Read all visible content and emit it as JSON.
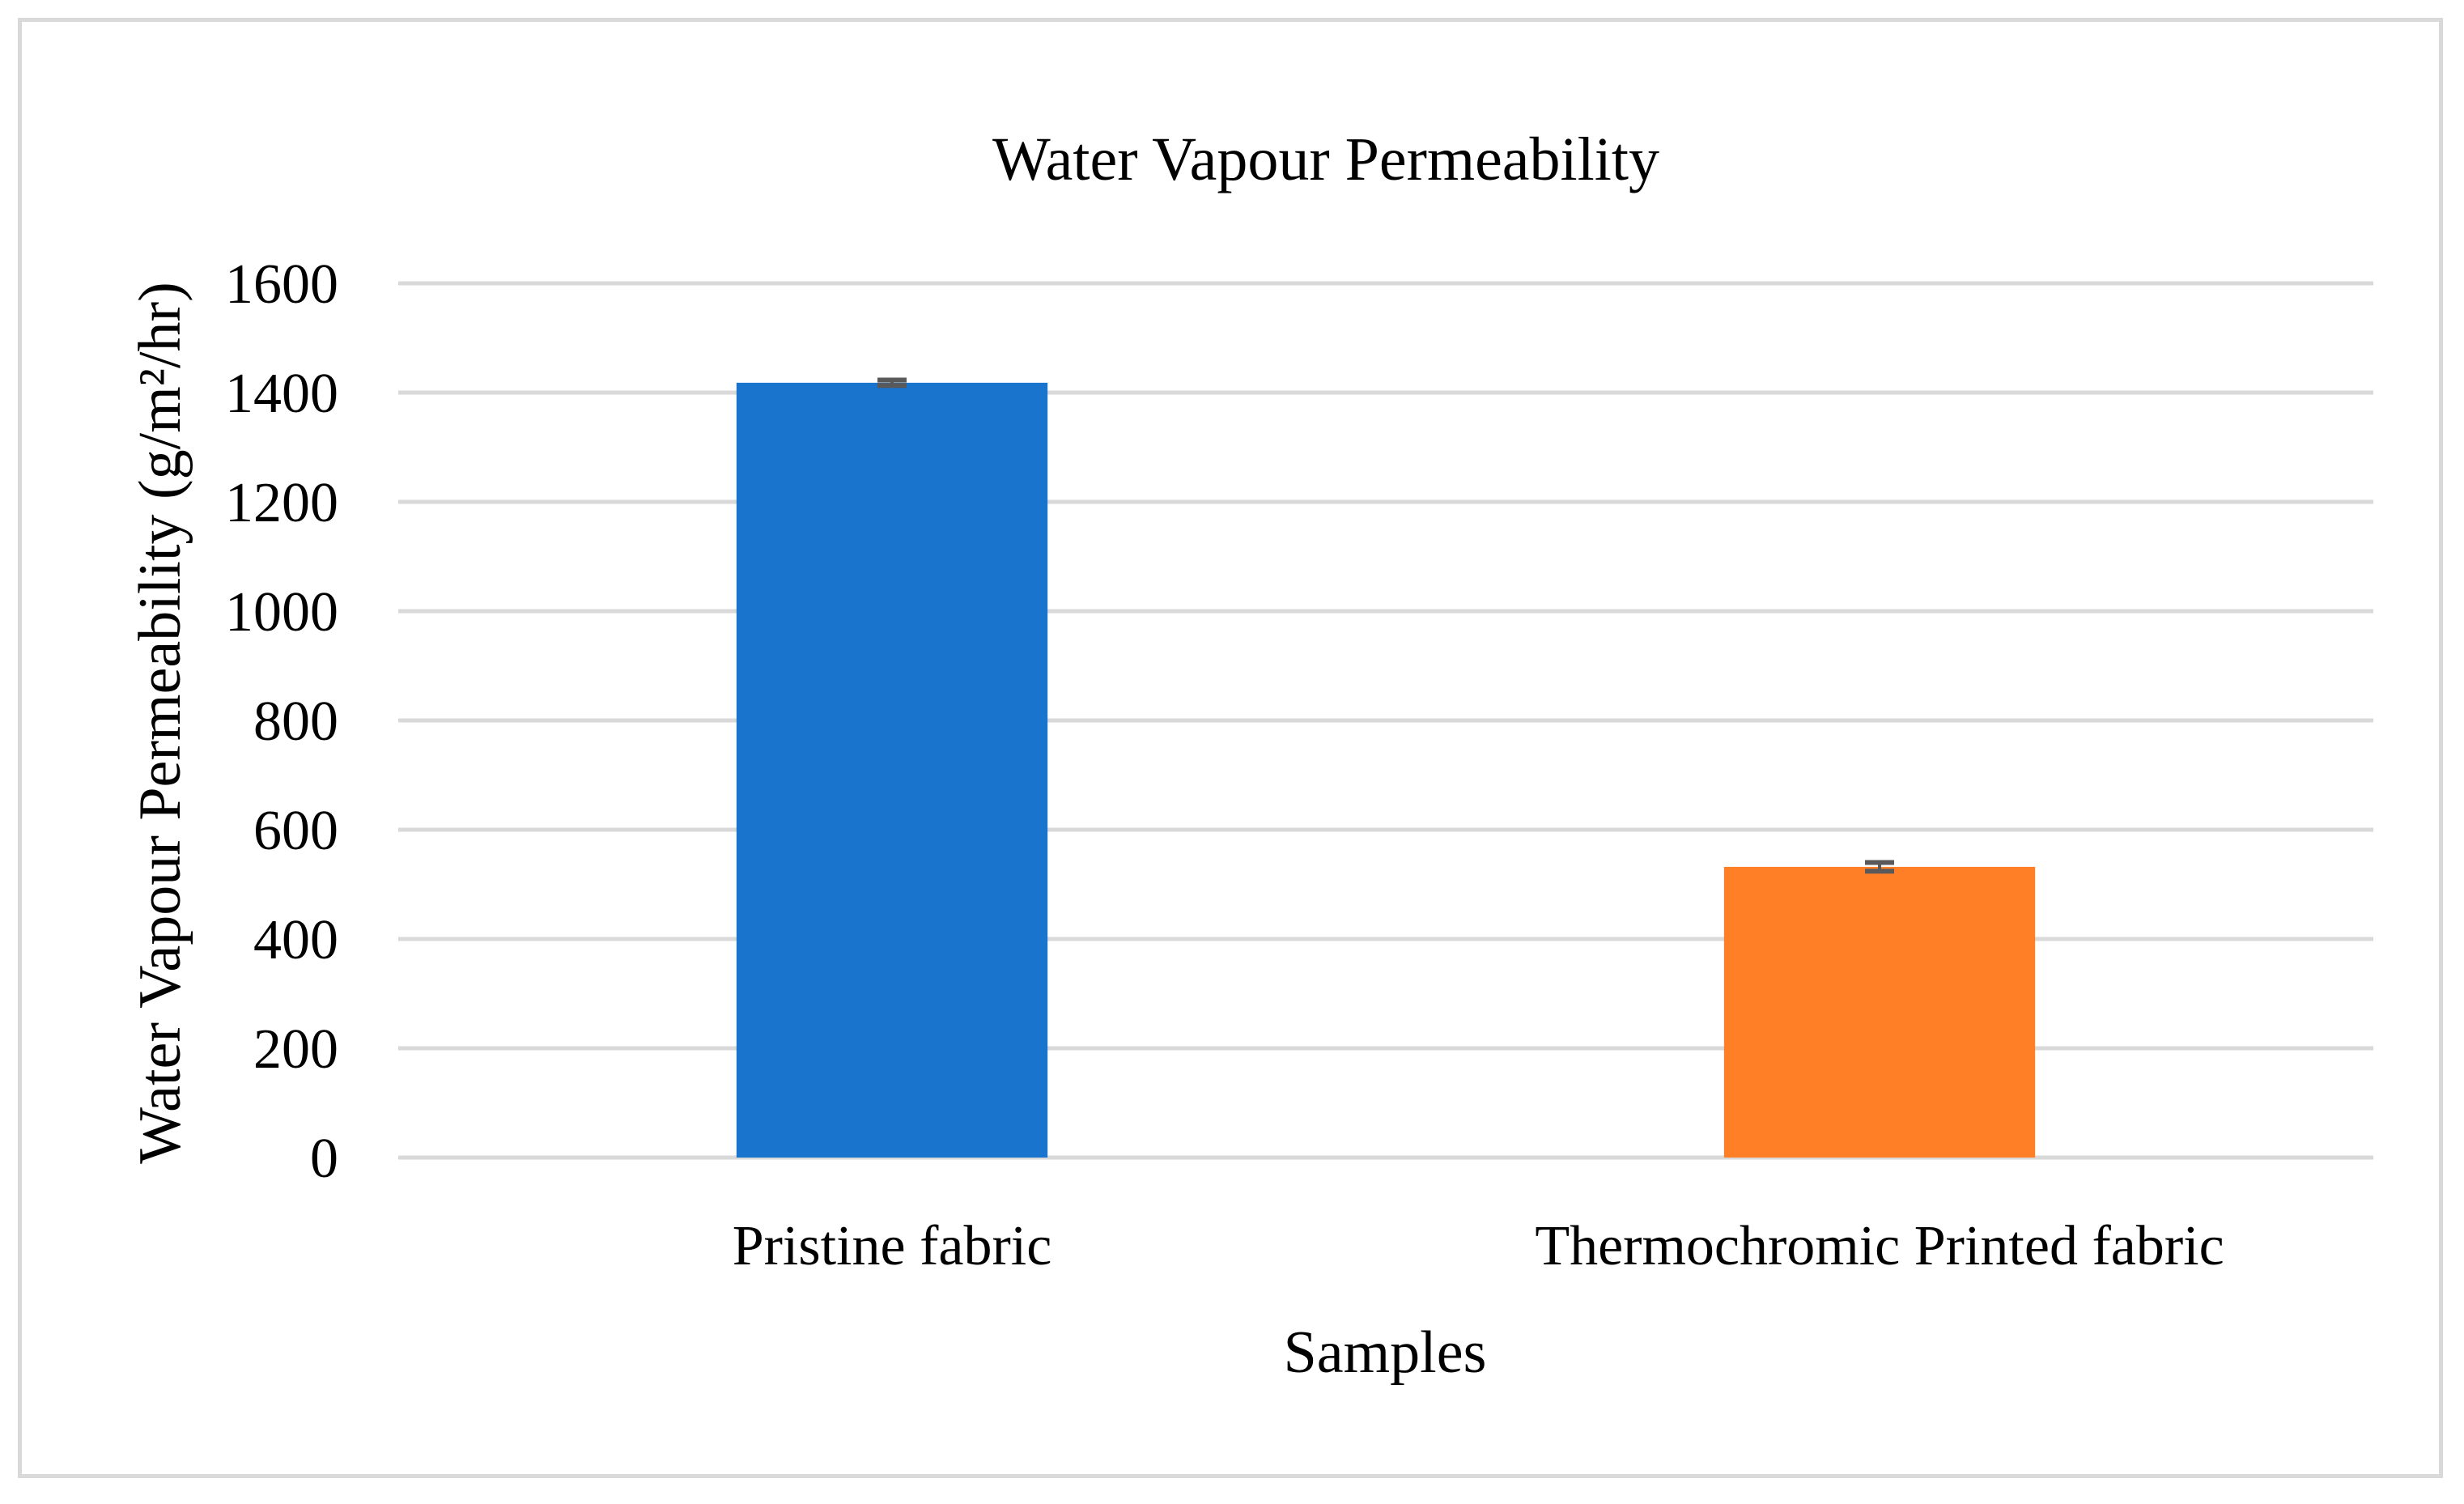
{
  "chart_data": {
    "type": "bar",
    "title": "Water Vapour Permeability",
    "xlabel": "Samples",
    "ylabel": "Water Vapour Permeability (g/m²/hr)",
    "categories": [
      "Pristine fabric",
      "Thermochromic Printed fabric"
    ],
    "values": [
      1418,
      532
    ],
    "errors": [
      5,
      8
    ],
    "colors": [
      "#1874CD",
      "#FF7F27"
    ],
    "ylim": [
      0,
      1600
    ],
    "yticks": [
      "0",
      "200",
      "400",
      "600",
      "800",
      "1000",
      "1200",
      "1400",
      "1600"
    ],
    "grid": true,
    "gridline_color": "#d9d9d9",
    "errorbar_color": "#595959"
  }
}
